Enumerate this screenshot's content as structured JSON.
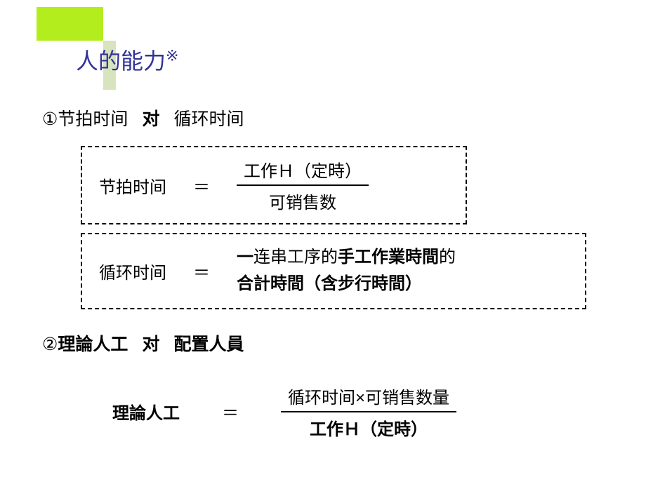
{
  "colors": {
    "green_block": "#b3ed1e",
    "gray_block": "#d7e4bd",
    "title_color": "#333399",
    "background": "#ffffff",
    "text": "#000000"
  },
  "title": {
    "part1": "人的",
    "part2": "能力",
    "note": "※"
  },
  "section1": {
    "num": "①",
    "label1": "节拍时间",
    "vs": "对",
    "label2": "循环时间",
    "formula1": {
      "label": "节拍时间",
      "equals": "＝",
      "numerator": "工作Ｈ（定時）",
      "denominator": "可销售数"
    },
    "formula2": {
      "label": "循环时间",
      "equals": "＝",
      "line1_a": "一",
      "line1_b": "连串工序的",
      "line1_c": "手工作業時間",
      "line1_d": "的",
      "line2_a": "合計時間（含",
      "line2_b": "步行時間",
      "line2_c": "）"
    }
  },
  "section2": {
    "num": "②",
    "label1": "理論人工",
    "vs": "对",
    "label2": "配置人員",
    "formula": {
      "label": "理論人工",
      "equals": "＝",
      "numerator": "循环时间×可销售数量",
      "denominator": "工作Ｈ（定時）"
    }
  }
}
